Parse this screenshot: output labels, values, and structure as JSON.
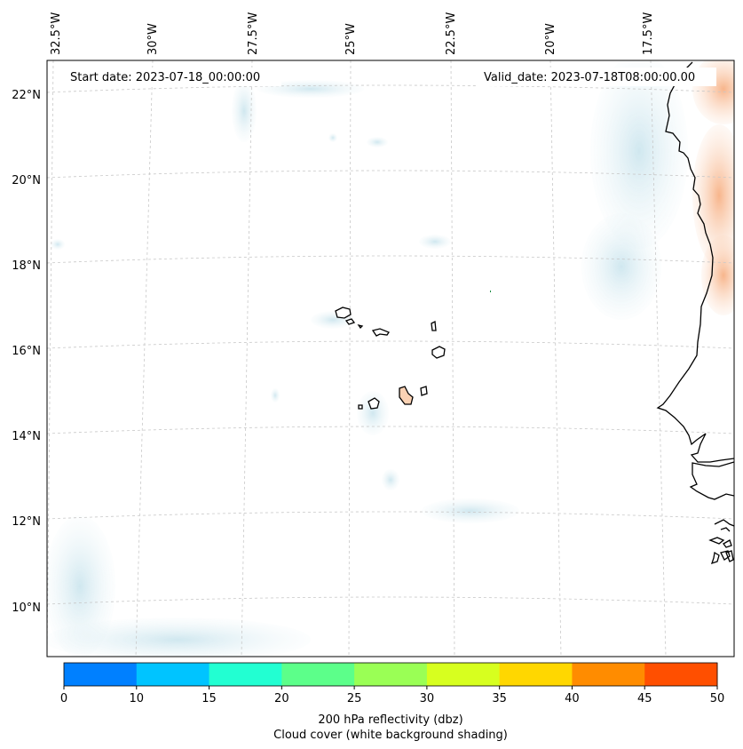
{
  "map": {
    "start_date_label": "Start date: 2023-07-18_00:00:00",
    "valid_date_label": "Valid_date: 2023-07-18T08:00:00.00",
    "lon_labels": [
      "32.5°W",
      "30°W",
      "27.5°W",
      "25°W",
      "22.5°W",
      "20°W",
      "17.5°W"
    ],
    "lat_labels": [
      "22°N",
      "20°N",
      "18°N",
      "16°N",
      "14°N",
      "12°N",
      "10°N"
    ],
    "gridlines": "dashed",
    "region": "Cabo Verde islands and West African coast"
  },
  "colorbar": {
    "ticks": [
      "0",
      "10",
      "15",
      "20",
      "25",
      "30",
      "35",
      "40",
      "45",
      "50"
    ],
    "colors": [
      "#0080ff",
      "#00c4ff",
      "#22ffd2",
      "#5cff8a",
      "#9aff55",
      "#d7ff1f",
      "#ffd700",
      "#ff8c00",
      "#ff4f00"
    ],
    "label_line1": "200 hPa reflectivity (dbz)",
    "label_line2": "Cloud cover (white background shading)"
  },
  "colors": {
    "cloud_shading": "#cfe6ee",
    "warm_shading": "#f7b78f",
    "coastline": "#000000",
    "grid": "#c8c8c8"
  }
}
